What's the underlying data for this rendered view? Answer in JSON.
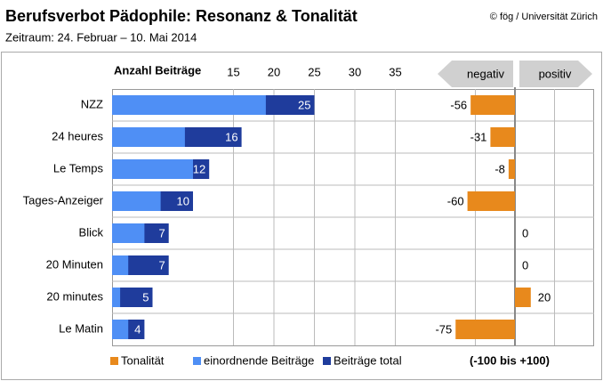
{
  "chart_data": [
    {
      "type": "bar",
      "title": "Berufsverbot Pädophile: Resonanz & Tonalität",
      "subtitle": "Zeitraum: 24. Februar – 10. Mai 2014",
      "source": "© fög / Universität Zürich",
      "xlabel": "Anzahl Beiträge",
      "categories": [
        "NZZ",
        "24 heures",
        "Le Temps",
        "Tages-Anzeiger",
        "Blick",
        "20 Minuten",
        "20 minutes",
        "Le Matin"
      ],
      "series": [
        {
          "name": "Beiträge total",
          "color": "#1f3c9c",
          "values": [
            25,
            16,
            12,
            10,
            7,
            7,
            5,
            4
          ]
        },
        {
          "name": "einordnende Beiträge",
          "color": "#4f8ff5",
          "values": [
            19,
            9,
            10,
            6,
            4,
            2,
            1,
            2
          ]
        }
      ],
      "xlim": [
        0,
        40
      ],
      "xticks": [
        15,
        20,
        25,
        30,
        35
      ],
      "grid": true
    },
    {
      "type": "diverging",
      "header_left": "negativ",
      "header_right": "positiv",
      "note": "(-100 bis +100)",
      "series": [
        {
          "name": "Tonalität",
          "color": "#e8891c",
          "values": [
            -56,
            -31,
            -8,
            -60,
            0,
            0,
            20,
            -75
          ]
        }
      ],
      "xlim": [
        -100,
        100
      ]
    }
  ]
}
